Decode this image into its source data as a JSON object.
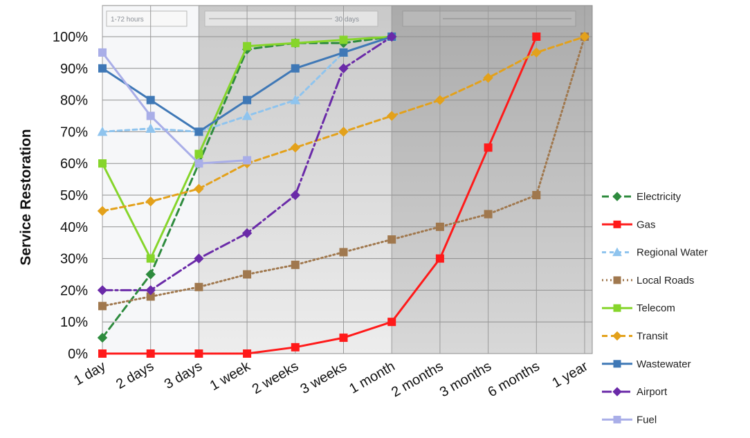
{
  "chart_data": {
    "type": "line",
    "title": "",
    "xlabel": "",
    "ylabel": "Service Restoration",
    "ylim": [
      0,
      100
    ],
    "y_ticks": [
      "0%",
      "10%",
      "20%",
      "30%",
      "40%",
      "50%",
      "60%",
      "70%",
      "80%",
      "90%",
      "100%"
    ],
    "categories": [
      "1 day",
      "2 days",
      "3 days",
      "1 week",
      "2 weeks",
      "3 weeks",
      "1 month",
      "2 months",
      "3 months",
      "6 months",
      "1 year"
    ],
    "band_labels": [
      "1-72 hours",
      "30 days",
      ""
    ],
    "grid": true,
    "legend_position": "right",
    "series": [
      {
        "name": "Electricity",
        "color": "#2e8b3e",
        "dash": "10,6",
        "marker": "diamond",
        "values": [
          5,
          25,
          60,
          96,
          98,
          98,
          100,
          null,
          null,
          null,
          null
        ]
      },
      {
        "name": "Gas",
        "color": "#ff1a1a",
        "dash": "",
        "marker": "square",
        "values": [
          0,
          0,
          0,
          0,
          2,
          5,
          10,
          30,
          65,
          100,
          null
        ]
      },
      {
        "name": "Regional Water",
        "color": "#8fc4ee",
        "dash": "6,5",
        "marker": "triangle",
        "values": [
          70,
          71,
          70,
          75,
          80,
          95,
          100,
          null,
          null,
          null,
          null
        ]
      },
      {
        "name": "Local Roads",
        "color": "#a0784e",
        "dash": "2,4",
        "marker": "square",
        "values": [
          15,
          18,
          21,
          25,
          28,
          32,
          36,
          40,
          44,
          50,
          100
        ]
      },
      {
        "name": "Telecom",
        "color": "#86d52b",
        "dash": "",
        "marker": "square",
        "values": [
          60,
          30,
          63,
          97,
          98,
          99,
          100,
          null,
          null,
          null,
          null
        ]
      },
      {
        "name": "Transit",
        "color": "#e3a11b",
        "dash": "8,5",
        "marker": "diamond",
        "values": [
          45,
          48,
          52,
          60,
          65,
          70,
          75,
          80,
          87,
          95,
          100
        ]
      },
      {
        "name": "Wastewater",
        "color": "#3f78b6",
        "dash": "",
        "marker": "square",
        "values": [
          90,
          80,
          70,
          80,
          90,
          95,
          100,
          null,
          null,
          null,
          null
        ]
      },
      {
        "name": "Airport",
        "color": "#6a2aa8",
        "dash": "14,5,3,5",
        "marker": "diamond",
        "values": [
          20,
          20,
          30,
          38,
          50,
          90,
          100,
          null,
          null,
          null,
          null
        ]
      },
      {
        "name": "Fuel",
        "color": "#a9aee8",
        "dash": "",
        "marker": "square",
        "values": [
          95,
          75,
          60,
          61,
          null,
          null,
          null,
          null,
          null,
          null,
          null
        ]
      }
    ]
  }
}
